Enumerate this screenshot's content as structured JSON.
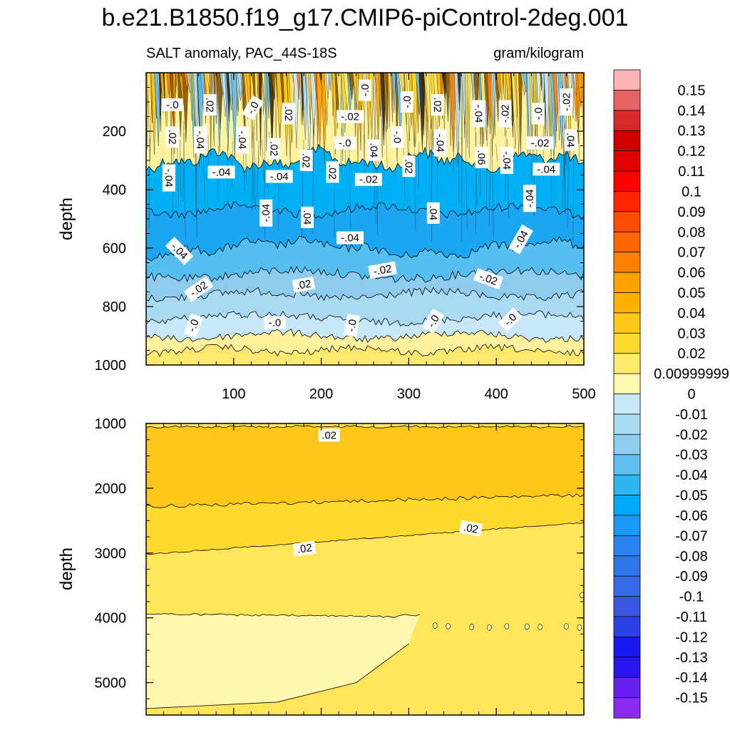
{
  "chart_data": {
    "type": "heatmap",
    "title": "b.e21.B1850.f19_g17.CMIP6-piControl-2deg.001",
    "subtitle_left": "SALT anomaly, PAC_44S-18S",
    "subtitle_right": "gram/kilogram",
    "xlim": [
      0,
      500
    ],
    "x_ticks": [
      100,
      200,
      300,
      400,
      500
    ],
    "panels": [
      {
        "name": "upper",
        "ylabel": "depth",
        "ylim": [
          0,
          1000
        ],
        "y_ticks": [
          200,
          400,
          600,
          800,
          1000
        ],
        "contour_labels": [
          {
            "text": "-.0",
            "x": 30,
            "y": 110,
            "rot": 0
          },
          {
            "text": ".02",
            "x": 73,
            "y": 110,
            "rot": 90
          },
          {
            "text": "-.0",
            "x": 122,
            "y": 120,
            "rot": -60
          },
          {
            "text": ".02",
            "x": 163,
            "y": 140,
            "rot": 90
          },
          {
            "text": "-.02",
            "x": 233,
            "y": 150,
            "rot": 0
          },
          {
            "text": "-.0",
            "x": 250,
            "y": 60,
            "rot": -90
          },
          {
            "text": "-.0",
            "x": 298,
            "y": 100,
            "rot": -90
          },
          {
            "text": ".02",
            "x": 333,
            "y": 110,
            "rot": 90
          },
          {
            "text": "-.04",
            "x": 380,
            "y": 140,
            "rot": 90
          },
          {
            "text": "-.02",
            "x": 410,
            "y": 140,
            "rot": -90
          },
          {
            "text": "-.0",
            "x": 448,
            "y": 140,
            "rot": -90
          },
          {
            "text": "-.02",
            "x": 480,
            "y": 100,
            "rot": -90
          },
          {
            "text": ".02",
            "x": 30,
            "y": 220,
            "rot": 90
          },
          {
            "text": "-.04",
            "x": 62,
            "y": 230,
            "rot": 90
          },
          {
            "text": "-.04",
            "x": 110,
            "y": 230,
            "rot": 90
          },
          {
            "text": ".02",
            "x": 146,
            "y": 260,
            "rot": 90
          },
          {
            "text": "-.0",
            "x": 227,
            "y": 240,
            "rot": 0
          },
          {
            "text": ".04",
            "x": 260,
            "y": 265,
            "rot": 90
          },
          {
            "text": "-.0",
            "x": 287,
            "y": 220,
            "rot": 90
          },
          {
            "text": "-.04",
            "x": 336,
            "y": 240,
            "rot": 90
          },
          {
            "text": ".06",
            "x": 383,
            "y": 290,
            "rot": 90
          },
          {
            "text": "-.04",
            "x": 412,
            "y": 300,
            "rot": 90
          },
          {
            "text": "-.02",
            "x": 450,
            "y": 240,
            "rot": 0
          },
          {
            "text": ".04",
            "x": 485,
            "y": 230,
            "rot": 90
          },
          {
            "text": ".02",
            "x": 183,
            "y": 300,
            "rot": 90
          },
          {
            "text": ".02",
            "x": 213,
            "y": 340,
            "rot": 90
          },
          {
            "text": "-.04",
            "x": 86,
            "y": 340,
            "rot": 0
          },
          {
            "text": "-.04",
            "x": 152,
            "y": 355,
            "rot": 0
          },
          {
            "text": "-.04",
            "x": 26,
            "y": 360,
            "rot": 90
          },
          {
            "text": "-.02",
            "x": 254,
            "y": 365,
            "rot": 0
          },
          {
            "text": ".02",
            "x": 300,
            "y": 320,
            "rot": 90
          },
          {
            "text": "-.04",
            "x": 457,
            "y": 330,
            "rot": 0
          },
          {
            "text": "-.04",
            "x": 438,
            "y": 430,
            "rot": -90
          },
          {
            "text": "-.04",
            "x": 137,
            "y": 480,
            "rot": -90
          },
          {
            "text": ".04",
            "x": 184,
            "y": 495,
            "rot": 90
          },
          {
            "text": ".04",
            "x": 328,
            "y": 480,
            "rot": 90
          },
          {
            "text": "-.04",
            "x": 233,
            "y": 565,
            "rot": 0
          },
          {
            "text": "-.04",
            "x": 428,
            "y": 570,
            "rot": -60
          },
          {
            "text": "-.04",
            "x": 38,
            "y": 610,
            "rot": 45
          },
          {
            "text": "-.02",
            "x": 270,
            "y": 675,
            "rot": -10
          },
          {
            "text": "-.02",
            "x": 391,
            "y": 705,
            "rot": 20
          },
          {
            "text": "-.02",
            "x": 60,
            "y": 740,
            "rot": -35
          },
          {
            "text": ".02",
            "x": 180,
            "y": 725,
            "rot": -10
          },
          {
            "text": "-.0",
            "x": 54,
            "y": 865,
            "rot": -70
          },
          {
            "text": "-.0",
            "x": 147,
            "y": 855,
            "rot": 0
          },
          {
            "text": "-.0",
            "x": 235,
            "y": 865,
            "rot": -80
          },
          {
            "text": "-.0",
            "x": 328,
            "y": 850,
            "rot": -60
          },
          {
            "text": "-.0",
            "x": 416,
            "y": 845,
            "rot": -45
          }
        ]
      },
      {
        "name": "lower",
        "ylabel": "depth",
        "ylim": [
          1000,
          5500
        ],
        "y_ticks": [
          1000,
          2000,
          3000,
          4000,
          5000
        ],
        "contour_labels": [
          {
            "text": ".02",
            "x": 209,
            "y": 1180,
            "rot": 0
          },
          {
            "text": ".02",
            "x": 181,
            "y": 2930,
            "rot": -8
          },
          {
            "text": ".02",
            "x": 371,
            "y": 2620,
            "rot": 10
          }
        ]
      }
    ],
    "colorbar": {
      "labels": [
        "0.15",
        "0.14",
        "0.13",
        "0.12",
        "0.11",
        "0.1",
        "0.09",
        "0.08",
        "0.07",
        "0.06",
        "0.05",
        "0.04",
        "0.03",
        "0.02",
        "0.00999999",
        "0",
        "-0.01",
        "-0.02",
        "-0.03",
        "-0.04",
        "-0.05",
        "-0.06",
        "-0.07",
        "-0.08",
        "-0.09",
        "-0.1",
        "-0.11",
        "-0.12",
        "-0.13",
        "-0.14",
        "-0.15"
      ],
      "colors": [
        "#ffb3b3",
        "#e86464",
        "#d62a2a",
        "#d10000",
        "#e30000",
        "#ff0000",
        "#ff2600",
        "#fe4c00",
        "#ff6600",
        "#ff8000",
        "#ffa000",
        "#ffb000",
        "#ffc61a",
        "#ffd92e",
        "#ffea6b",
        "#fff9b0",
        "#c8e8f7",
        "#aad9f2",
        "#8ecbef",
        "#62c0f0",
        "#2fb5f0",
        "#00a8f8",
        "#1899f5",
        "#2a85f0",
        "#2f76ea",
        "#376ae6",
        "#3a59e0",
        "#2a42e6",
        "#1a1af0",
        "#2a14ee",
        "#6a1ff0",
        "#8a2af3"
      ]
    }
  }
}
